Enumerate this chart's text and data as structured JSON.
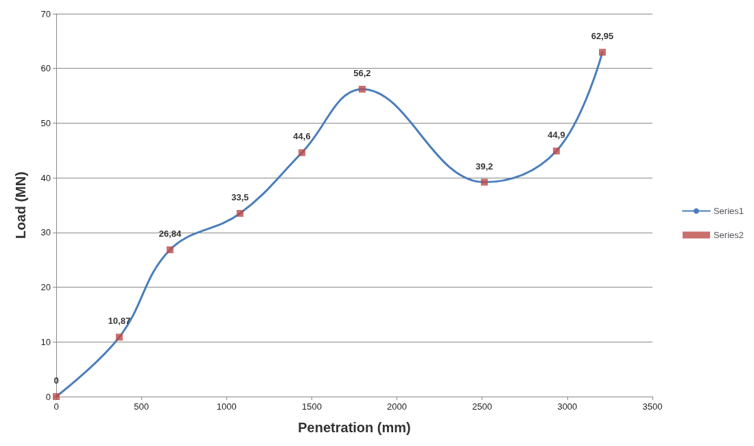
{
  "chart_data": {
    "type": "line",
    "xlabel": "Penetration (mm)",
    "ylabel": "Load (MN)",
    "x": [
      0,
      370,
      668,
      1079,
      1442,
      1796,
      2513,
      2936,
      3206
    ],
    "series": [
      {
        "name": "Series1",
        "color": "#4a7ebb",
        "marker": "none",
        "values": [
          0,
          10.87,
          26.84,
          33.5,
          44.6,
          56.2,
          39.2,
          44.9,
          62.95
        ]
      },
      {
        "name": "Series2",
        "type": "scatter",
        "color": "#be4b48",
        "marker": "square",
        "values": [
          0,
          10.87,
          26.84,
          33.5,
          44.6,
          56.2,
          39.2,
          44.9,
          62.95
        ],
        "value_labels": [
          "0",
          "10,87",
          "26,84",
          "33,5",
          "44,6",
          "56,2",
          "39,2",
          "44,9",
          "62,95"
        ]
      }
    ],
    "xlim": [
      0,
      3500
    ],
    "xticks": [
      0,
      500,
      1000,
      1500,
      2000,
      2500,
      3000,
      3500
    ],
    "ylim": [
      0,
      70
    ],
    "yticks": [
      0,
      10,
      20,
      30,
      40,
      50,
      60,
      70
    ],
    "grid": "y",
    "legend": "right"
  }
}
